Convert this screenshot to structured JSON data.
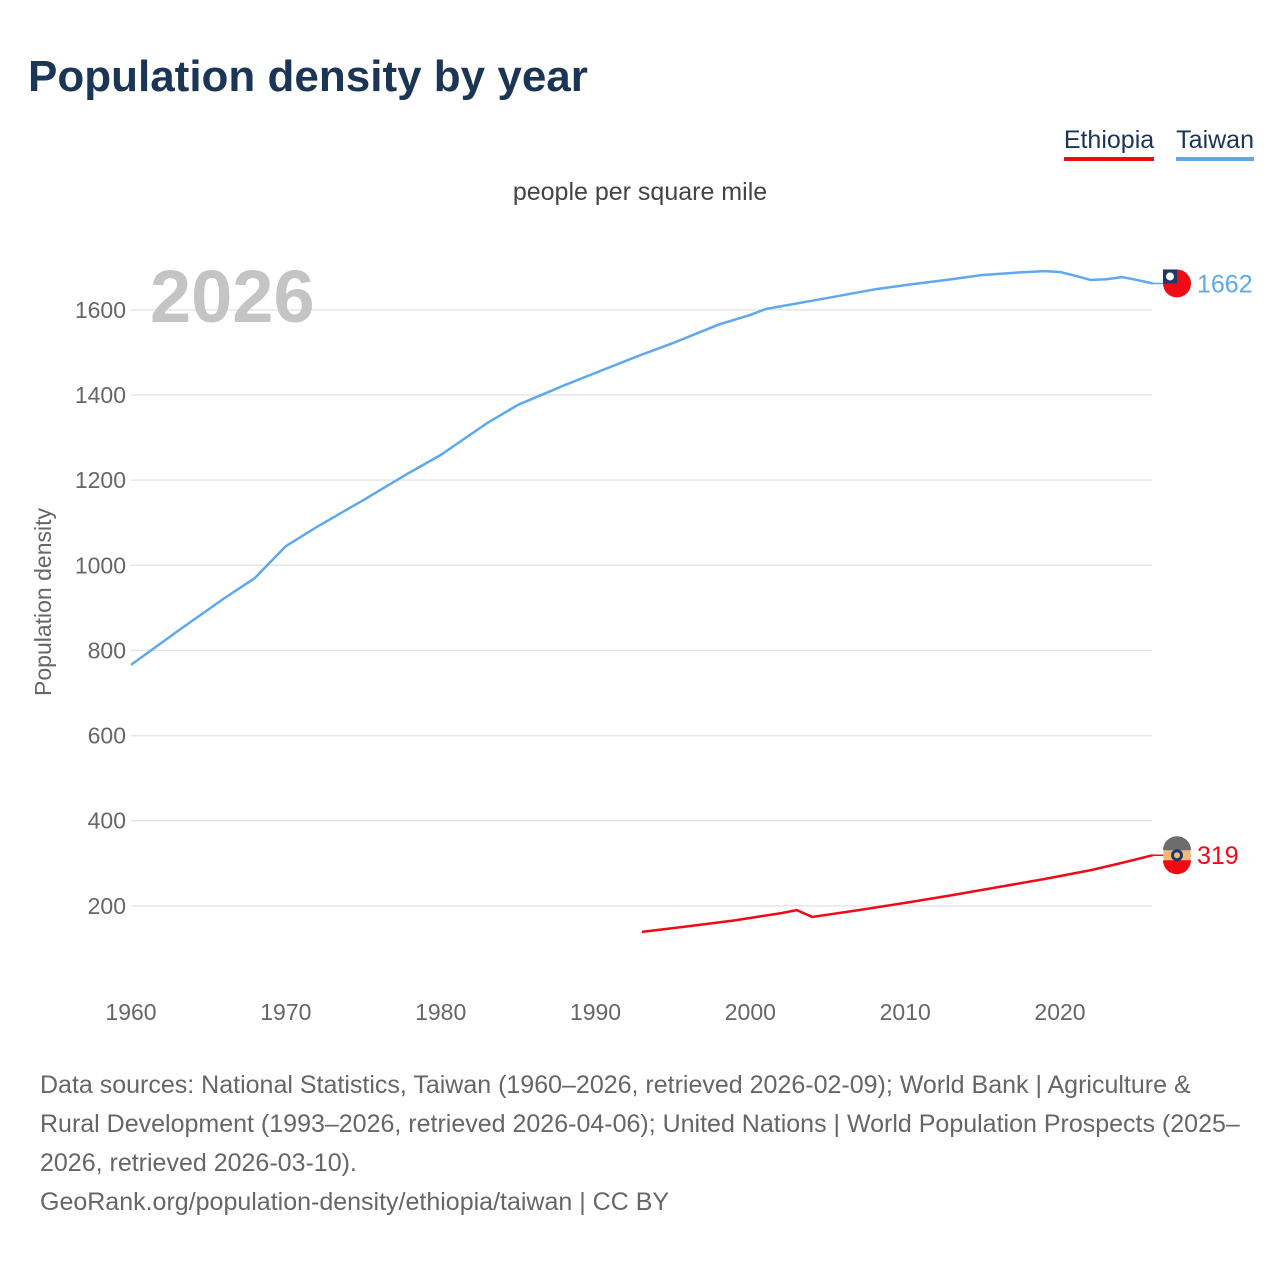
{
  "title": "Population density by year",
  "legend": [
    {
      "name": "Ethiopia",
      "color": "#f00a14"
    },
    {
      "name": "Taiwan",
      "color": "#5ea8ec"
    }
  ],
  "subtitle": "people per square mile",
  "current_year": "2026",
  "footer": {
    "sources": "Data sources: National Statistics, Taiwan (1960–2026, retrieved 2026-02-09); World Bank | Agriculture & Rural Development (1993–2026, retrieved 2026-04-06); United Nations | World Population Prospects (2025–2026, retrieved 2026-03-10).",
    "link": "GeoRank.org/population-density/ethiopia/taiwan | CC BY"
  },
  "chart_data": {
    "type": "line",
    "title": "Population density by year",
    "ylabel": "Population density",
    "xlabel": "",
    "xlim": [
      1960,
      2026
    ],
    "ylim": [
      0,
      1700
    ],
    "xticks": [
      1960,
      1970,
      1980,
      1990,
      2000,
      2010,
      2020
    ],
    "yticks": [
      200,
      400,
      600,
      800,
      1000,
      1200,
      1400,
      1600
    ],
    "grid": true,
    "legend_position": "top-right",
    "series": [
      {
        "name": "Taiwan",
        "color": "#5ea8ec",
        "end_label": "1662",
        "x": [
          1960,
          1963,
          1966,
          1968,
          1970,
          1972,
          1975,
          1978,
          1980,
          1983,
          1985,
          1988,
          1990,
          1993,
          1995,
          1998,
          2000,
          2001,
          2005,
          2008,
          2010,
          2013,
          2015,
          2017,
          2019,
          2020,
          2021,
          2022,
          2023,
          2024,
          2025,
          2026
        ],
        "y": [
          766,
          845,
          922,
          970,
          1045,
          1090,
          1153,
          1218,
          1259,
          1334,
          1377,
          1423,
          1452,
          1495,
          1522,
          1566,
          1588,
          1602,
          1628,
          1648,
          1658,
          1672,
          1682,
          1687,
          1691,
          1689,
          1680,
          1670,
          1672,
          1677,
          1670,
          1662
        ]
      },
      {
        "name": "Ethiopia",
        "color": "#f00a14",
        "end_label": "319",
        "x": [
          1993,
          1996,
          1999,
          2002,
          2003,
          2004,
          2007,
          2010,
          2013,
          2016,
          2019,
          2022,
          2024,
          2026
        ],
        "y": [
          139,
          152,
          166,
          183,
          190,
          174,
          190,
          207,
          225,
          244,
          263,
          284,
          301,
          319
        ]
      }
    ]
  }
}
